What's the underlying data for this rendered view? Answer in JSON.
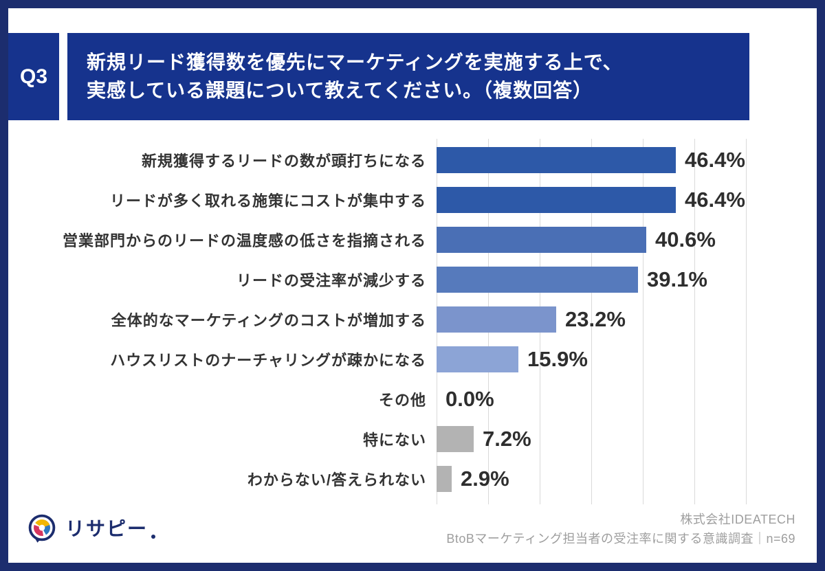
{
  "frame": {
    "border_color": "#1c2d6e"
  },
  "header": {
    "q_label": "Q3",
    "title_line1": "新規リード獲得数を優先にマーケティングを実施する上で、",
    "title_line2": "実感している課題について教えてください。（複数回答）",
    "banner_color": "#16338d"
  },
  "chart_data": {
    "type": "bar",
    "orientation": "horizontal",
    "title": "新規リード獲得数を優先にマーケティングを実施する上で、実感している課題について教えてください。（複数回答）",
    "categories": [
      "新規獲得するリードの数が頭打ちになる",
      "リードが多く取れる施策にコストが集中する",
      "営業部門からのリードの温度感の低さを指摘される",
      "リードの受注率が減少する",
      "全体的なマーケティングのコストが増加する",
      "ハウスリストのナーチャリングが疎かになる",
      "その他",
      "特にない",
      "わからない/答えられない"
    ],
    "values": [
      46.4,
      46.4,
      40.6,
      39.1,
      23.2,
      15.9,
      0.0,
      7.2,
      2.9
    ],
    "value_labels": [
      "46.4%",
      "46.4%",
      "40.6%",
      "39.1%",
      "23.2%",
      "15.9%",
      "0.0%",
      "7.2%",
      "2.9%"
    ],
    "bar_colors": [
      "#2d59a8",
      "#2d59a8",
      "#4a6fb5",
      "#567abc",
      "#7b94cc",
      "#8ca4d6",
      "#8ca4d6",
      "#b3b3b3",
      "#b3b3b3"
    ],
    "xlim": [
      0,
      60
    ],
    "gridline_percent_step": 10,
    "grid": true,
    "legend": false,
    "xlabel": "",
    "ylabel": "",
    "n": 69
  },
  "footer": {
    "logo_text": "リサピー",
    "credit_line1": "株式会社IDEATECH",
    "credit_line2": "BtoBマーケティング担当者の受注率に関する意識調査｜n=69"
  }
}
